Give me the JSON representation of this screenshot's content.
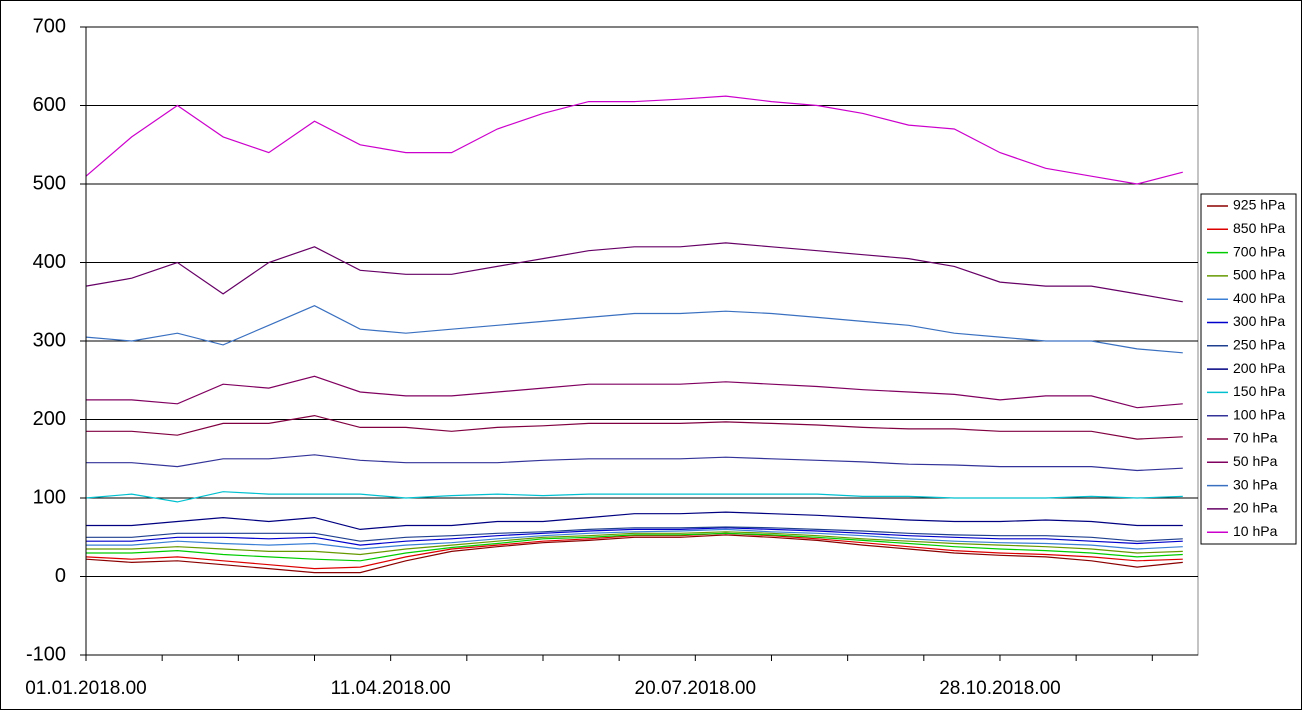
{
  "chart_data": {
    "type": "line",
    "x": [
      "01.01.2018.00",
      "16.01.2018.00",
      "31.01.2018.00",
      "15.02.2018.00",
      "02.03.2018.00",
      "17.03.2018.00",
      "01.04.2018.00",
      "16.04.2018.00",
      "01.05.2018.00",
      "16.05.2018.00",
      "31.05.2018.00",
      "15.06.2018.00",
      "30.06.2018.00",
      "15.07.2018.00",
      "30.07.2018.00",
      "14.08.2018.00",
      "29.08.2018.00",
      "13.09.2018.00",
      "28.09.2018.00",
      "13.10.2018.00",
      "28.10.2018.00",
      "12.11.2018.00",
      "27.11.2018.00",
      "12.12.2018.00",
      "27.12.2018.00"
    ],
    "xlim": [
      "01.01.2018.00",
      "01.01.2019.00"
    ],
    "xticks": [
      "01.01.2018.00",
      {
        "value": "26.01.2018.00",
        "label": null
      },
      {
        "value": "20.02.2018.00",
        "label": null
      },
      {
        "value": "17.03.2018.00",
        "label": null
      },
      "11.04.2018.00",
      {
        "value": "06.05.2018.00",
        "label": null
      },
      {
        "value": "31.05.2018.00",
        "label": null
      },
      {
        "value": "25.06.2018.00",
        "label": null
      },
      "20.07.2018.00",
      {
        "value": "14.08.2018.00",
        "label": null
      },
      {
        "value": "08.09.2018.00",
        "label": null
      },
      {
        "value": "03.10.2018.00",
        "label": null
      },
      "28.10.2018.00",
      {
        "value": "22.11.2018.00",
        "label": null
      },
      {
        "value": "17.12.2018.00",
        "label": null
      }
    ],
    "ylim": [
      -100,
      700
    ],
    "yticks": [
      -100,
      0,
      100,
      200,
      300,
      400,
      500,
      600,
      700
    ],
    "grid": true,
    "legend": "right",
    "series": [
      {
        "name": "925 hPa",
        "color": "#8b0000",
        "values": [
          22,
          18,
          20,
          15,
          10,
          5,
          5,
          20,
          32,
          38,
          43,
          46,
          50,
          50,
          53,
          50,
          46,
          40,
          35,
          30,
          27,
          25,
          20,
          12,
          18
        ]
      },
      {
        "name": "850 hPa",
        "color": "#dd0000",
        "values": [
          25,
          22,
          25,
          20,
          15,
          10,
          12,
          25,
          35,
          40,
          45,
          48,
          52,
          52,
          55,
          52,
          48,
          43,
          38,
          33,
          30,
          28,
          25,
          20,
          22
        ]
      },
      {
        "name": "700 hPa",
        "color": "#00cc00",
        "values": [
          30,
          30,
          33,
          28,
          25,
          22,
          20,
          30,
          37,
          42,
          48,
          50,
          53,
          53,
          55,
          53,
          50,
          46,
          42,
          38,
          35,
          33,
          30,
          25,
          28
        ]
      },
      {
        "name": "500 hPa",
        "color": "#669900",
        "values": [
          35,
          35,
          38,
          35,
          32,
          32,
          28,
          35,
          40,
          45,
          50,
          52,
          55,
          55,
          57,
          55,
          52,
          48,
          45,
          42,
          40,
          38,
          35,
          30,
          32
        ]
      },
      {
        "name": "400 hPa",
        "color": "#3a7fd5",
        "values": [
          40,
          40,
          45,
          42,
          40,
          42,
          35,
          40,
          43,
          48,
          52,
          55,
          57,
          58,
          60,
          57,
          55,
          52,
          48,
          45,
          43,
          42,
          40,
          35,
          38
        ]
      },
      {
        "name": "300 hPa",
        "color": "#0000cc",
        "values": [
          45,
          45,
          50,
          50,
          48,
          50,
          40,
          45,
          48,
          52,
          55,
          58,
          60,
          60,
          62,
          60,
          58,
          55,
          52,
          50,
          48,
          48,
          45,
          42,
          45
        ]
      },
      {
        "name": "250 hPa",
        "color": "#1f3f8f",
        "values": [
          50,
          50,
          55,
          55,
          55,
          55,
          45,
          50,
          52,
          55,
          57,
          60,
          62,
          62,
          63,
          62,
          60,
          58,
          55,
          53,
          52,
          52,
          50,
          45,
          48
        ]
      },
      {
        "name": "200 hPa",
        "color": "#000080",
        "values": [
          65,
          65,
          70,
          75,
          70,
          75,
          60,
          65,
          65,
          70,
          70,
          75,
          80,
          80,
          82,
          80,
          78,
          75,
          72,
          70,
          70,
          72,
          70,
          65,
          65
        ]
      },
      {
        "name": "150 hPa",
        "color": "#00c0d0",
        "values": [
          100,
          105,
          95,
          108,
          105,
          105,
          105,
          100,
          103,
          105,
          103,
          105,
          105,
          105,
          105,
          105,
          105,
          102,
          102,
          100,
          100,
          100,
          102,
          100,
          102
        ]
      },
      {
        "name": "100 hPa",
        "color": "#333399",
        "values": [
          145,
          145,
          140,
          150,
          150,
          155,
          148,
          145,
          145,
          145,
          148,
          150,
          150,
          150,
          152,
          150,
          148,
          146,
          143,
          142,
          140,
          140,
          140,
          135,
          138
        ]
      },
      {
        "name": "70 hPa",
        "color": "#800040",
        "values": [
          185,
          185,
          180,
          195,
          195,
          205,
          190,
          190,
          185,
          190,
          192,
          195,
          195,
          195,
          197,
          195,
          193,
          190,
          188,
          188,
          185,
          185,
          185,
          175,
          178
        ]
      },
      {
        "name": "50 hPa",
        "color": "#800060",
        "values": [
          225,
          225,
          220,
          245,
          240,
          255,
          235,
          230,
          230,
          235,
          240,
          245,
          245,
          245,
          248,
          245,
          242,
          238,
          235,
          232,
          225,
          230,
          230,
          215,
          220
        ]
      },
      {
        "name": "30 hPa",
        "color": "#3a70c0",
        "values": [
          305,
          300,
          310,
          295,
          320,
          345,
          315,
          310,
          315,
          320,
          325,
          330,
          335,
          335,
          338,
          335,
          330,
          325,
          320,
          310,
          305,
          300,
          300,
          290,
          285
        ]
      },
      {
        "name": "20 hPa",
        "color": "#660066",
        "values": [
          370,
          380,
          400,
          360,
          400,
          420,
          390,
          385,
          385,
          395,
          405,
          415,
          420,
          420,
          425,
          420,
          415,
          410,
          405,
          395,
          375,
          370,
          370,
          360,
          350
        ]
      },
      {
        "name": "10 hPa",
        "color": "#cc00cc",
        "values": [
          510,
          560,
          600,
          560,
          540,
          580,
          550,
          540,
          540,
          570,
          590,
          605,
          605,
          608,
          612,
          605,
          600,
          590,
          575,
          570,
          540,
          520,
          510,
          500,
          515
        ]
      }
    ]
  }
}
